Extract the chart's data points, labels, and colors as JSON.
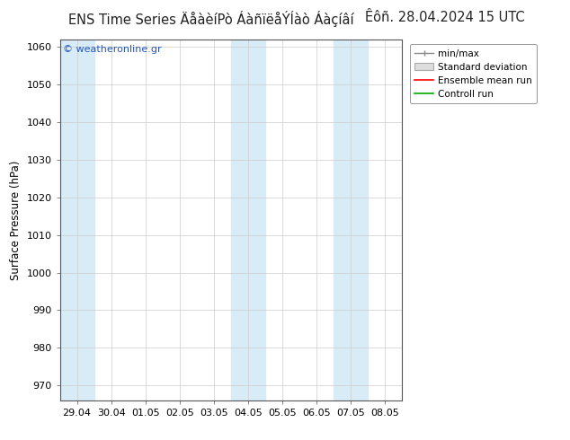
{
  "title_left": "ENS Time Series ÄåàèíPò ÁàñïëåÝÍàò Áàçíâí",
  "date_text": "Êôñ. 28.04.2024 15 UTC",
  "ylabel": "Surface Pressure (hPa)",
  "yticks": [
    970,
    980,
    990,
    1000,
    1010,
    1020,
    1030,
    1040,
    1050,
    1060
  ],
  "ylim": [
    966,
    1062
  ],
  "xtick_labels": [
    "29.04",
    "30.04",
    "01.05",
    "02.05",
    "03.05",
    "04.05",
    "05.05",
    "06.05",
    "07.05",
    "08.05"
  ],
  "watermark": "© weatheronline.gr",
  "bg_color": "#ffffff",
  "plot_bg_color": "#ffffff",
  "shaded_bands_color": "#d8ecf8",
  "grid_color": "#cccccc",
  "title_fontsize": 10.5,
  "axis_fontsize": 8.5,
  "tick_fontsize": 8,
  "n_xticks": 10
}
